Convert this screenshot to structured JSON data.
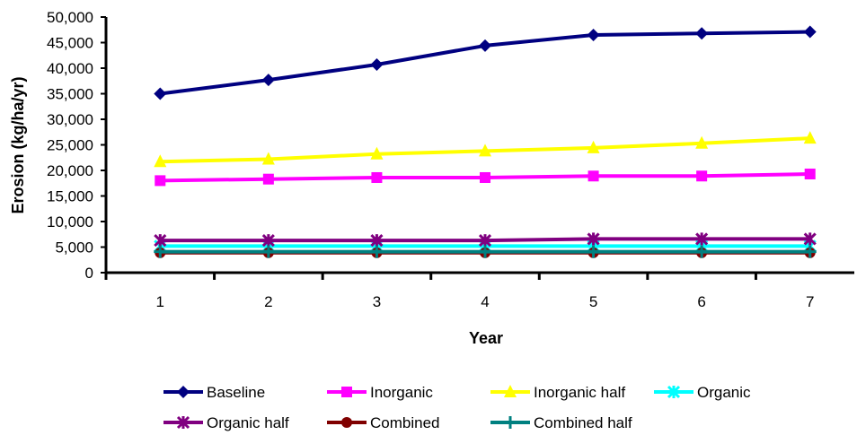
{
  "chart_data": {
    "type": "line",
    "title": "",
    "xlabel": "Year",
    "ylabel": "Erosion (kg/ha/yr)",
    "x": [
      1,
      2,
      3,
      4,
      5,
      6,
      7
    ],
    "x_tick_labels": [
      "1",
      "2",
      "3",
      "4",
      "5",
      "6",
      "7"
    ],
    "ylim": [
      0,
      50000
    ],
    "y_tick_labels": [
      "0",
      "5,000",
      "10,000",
      "15,000",
      "20,000",
      "25,000",
      "30,000",
      "35,000",
      "40,000",
      "45,000",
      "50,000"
    ],
    "grid": false,
    "legend_position": "bottom",
    "series": [
      {
        "name": "Baseline",
        "color": "#000080",
        "marker": "diamond",
        "values": [
          35000,
          37700,
          40700,
          44400,
          46500,
          46800,
          47100
        ]
      },
      {
        "name": "Inorganic",
        "color": "#ff00ff",
        "marker": "square",
        "values": [
          18000,
          18300,
          18600,
          18600,
          18900,
          18900,
          19300
        ]
      },
      {
        "name": "Inorganic half",
        "color": "#ffff00",
        "marker": "triangle",
        "values": [
          21700,
          22200,
          23200,
          23800,
          24400,
          25300,
          26300
        ]
      },
      {
        "name": "Organic",
        "color": "#00ffff",
        "marker": "x",
        "values": [
          5200,
          5200,
          5200,
          5200,
          5200,
          5200,
          5200
        ]
      },
      {
        "name": "Organic half",
        "color": "#800080",
        "marker": "x",
        "values": [
          6300,
          6300,
          6300,
          6300,
          6600,
          6600,
          6600
        ]
      },
      {
        "name": "Combined",
        "color": "#800000",
        "marker": "circle",
        "values": [
          3900,
          3900,
          3900,
          3900,
          3900,
          3900,
          3900
        ]
      },
      {
        "name": "Combined half",
        "color": "#008080",
        "marker": "plus",
        "values": [
          4100,
          4100,
          4100,
          4100,
          4100,
          4100,
          4100
        ]
      }
    ]
  }
}
